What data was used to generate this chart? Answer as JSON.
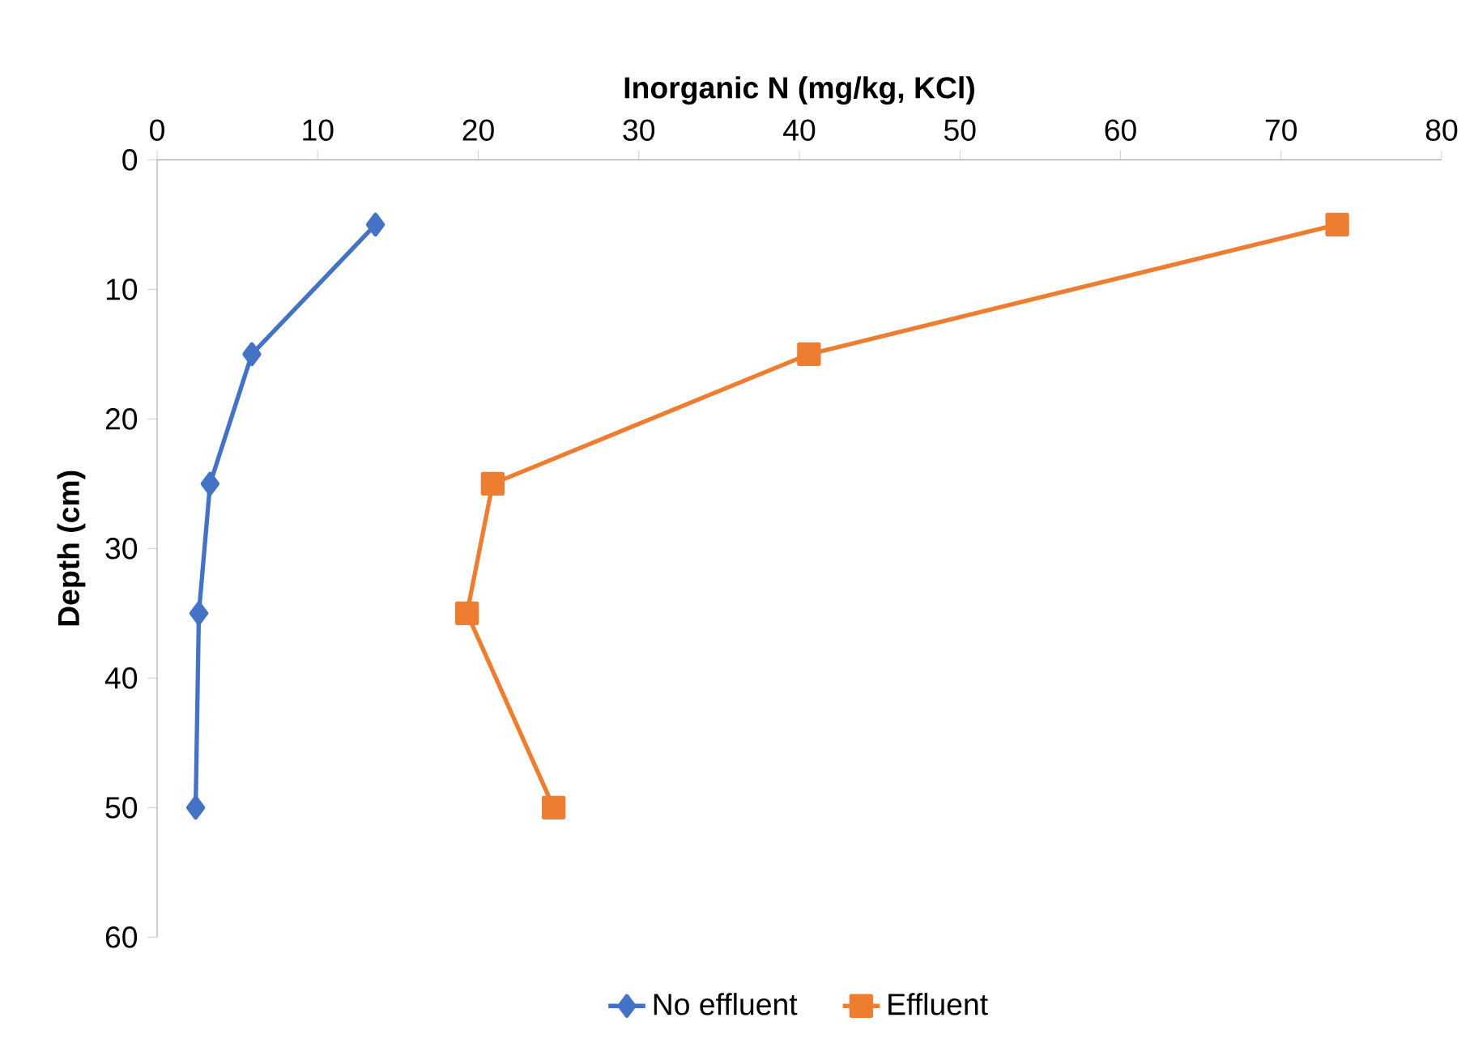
{
  "chart_data": {
    "type": "line",
    "xlabel": "Inorganic N (mg/kg, KCl)",
    "ylabel": "Depth (cm)",
    "xlim": [
      0,
      80
    ],
    "xticks": [
      0,
      10,
      20,
      30,
      40,
      50,
      60,
      70,
      80
    ],
    "ylim": [
      60,
      0
    ],
    "yticks": [
      0,
      10,
      20,
      30,
      40,
      50,
      60
    ],
    "grid": false,
    "legend": "bottom",
    "line_style": "solid",
    "series": [
      {
        "name": "No effluent",
        "color": "#4472c4",
        "marker": "diamond",
        "x": [
          13.6,
          5.9,
          3.3,
          2.6,
          2.4
        ],
        "values": [
          5,
          15,
          25,
          35,
          50
        ]
      },
      {
        "name": "Effluent",
        "color": "#ed7d31",
        "marker": "square",
        "x": [
          73.5,
          40.6,
          20.9,
          19.3,
          24.7
        ],
        "values": [
          5,
          15,
          25,
          35,
          50
        ]
      }
    ]
  }
}
